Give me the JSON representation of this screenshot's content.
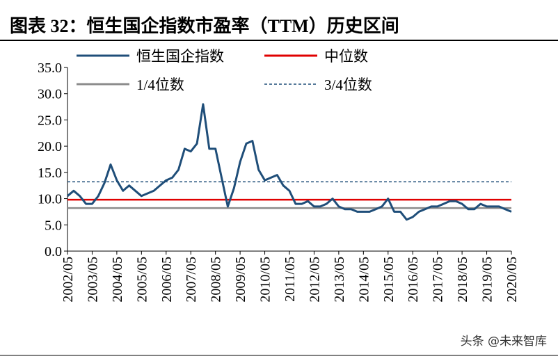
{
  "chart_data": {
    "type": "line",
    "title": "图表 32：恒生国企指数市盈率（TTM）历史区间",
    "categories": [
      "2002/05",
      null,
      null,
      null,
      "2003/05",
      null,
      null,
      null,
      "2004/05",
      null,
      null,
      null,
      "2005/05",
      null,
      null,
      null,
      "2006/05",
      null,
      null,
      null,
      "2007/05",
      null,
      null,
      null,
      "2008/05",
      null,
      null,
      null,
      "2009/05",
      null,
      null,
      null,
      "2010/05",
      null,
      null,
      null,
      "2011/05",
      null,
      null,
      null,
      "2012/05",
      null,
      null,
      null,
      "2013/05",
      null,
      null,
      null,
      "2014/05",
      null,
      null,
      null,
      "2015/05",
      null,
      null,
      null,
      "2016/05",
      null,
      null,
      null,
      "2017/05",
      null,
      null,
      null,
      "2018/05",
      null,
      null,
      null,
      "2019/05",
      null,
      null,
      null,
      "2020/05"
    ],
    "series": [
      {
        "name": "恒生国企指数",
        "color": "#1f4e79",
        "values": [
          10.5,
          11.5,
          10.5,
          9.0,
          9.0,
          10.5,
          13.0,
          16.5,
          13.5,
          11.5,
          12.5,
          11.5,
          10.5,
          11.0,
          11.5,
          12.5,
          13.5,
          14.0,
          15.5,
          19.5,
          19.0,
          20.5,
          28.0,
          19.5,
          19.5,
          14.0,
          8.5,
          12.0,
          17.0,
          20.5,
          21.0,
          15.5,
          13.5,
          14.0,
          14.5,
          12.5,
          11.5,
          9.0,
          9.0,
          9.5,
          8.5,
          8.5,
          9.0,
          10.0,
          8.5,
          8.0,
          8.0,
          7.5,
          7.5,
          7.5,
          8.0,
          8.5,
          10.0,
          7.5,
          7.5,
          6.0,
          6.5,
          7.5,
          8.0,
          8.5,
          8.5,
          9.0,
          9.5,
          9.5,
          9.0,
          8.0,
          8.0,
          9.0,
          8.5,
          8.5,
          8.5,
          8.0,
          7.5
        ]
      }
    ],
    "reference_lines": [
      {
        "name": "中位数",
        "color": "#e00000",
        "value": 9.8,
        "style": "solid"
      },
      {
        "name": "1/4位数",
        "color": "#8c8c8c",
        "value": 8.2,
        "style": "solid"
      },
      {
        "name": "3/4位数",
        "color": "#1f4e79",
        "value": 13.2,
        "style": "dashed"
      }
    ],
    "ylim": [
      0,
      35
    ],
    "yticks": [
      {
        "value": 0,
        "label": "0.0"
      },
      {
        "value": 5,
        "label": "5.0"
      },
      {
        "value": 10,
        "label": "10.0"
      },
      {
        "value": 15,
        "label": "15.0"
      },
      {
        "value": 20,
        "label": "20.0"
      },
      {
        "value": 25,
        "label": "25.0"
      },
      {
        "value": 30,
        "label": "30.0"
      },
      {
        "value": 35,
        "label": "35.0"
      }
    ],
    "grid": false
  },
  "watermark": "头条 @未来智库"
}
